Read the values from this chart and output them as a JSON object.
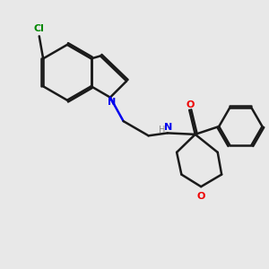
{
  "background_color": "#e8e8e8",
  "bond_color": "#1a1a1a",
  "N_color": "#0000ee",
  "O_color": "#ee0000",
  "Cl_color": "#008800",
  "H_color": "#888888",
  "line_width": 1.8,
  "dbo": 0.07,
  "figsize": [
    3.0,
    3.0
  ],
  "dpi": 100,
  "xlim": [
    0,
    10
  ],
  "ylim": [
    0,
    10
  ]
}
